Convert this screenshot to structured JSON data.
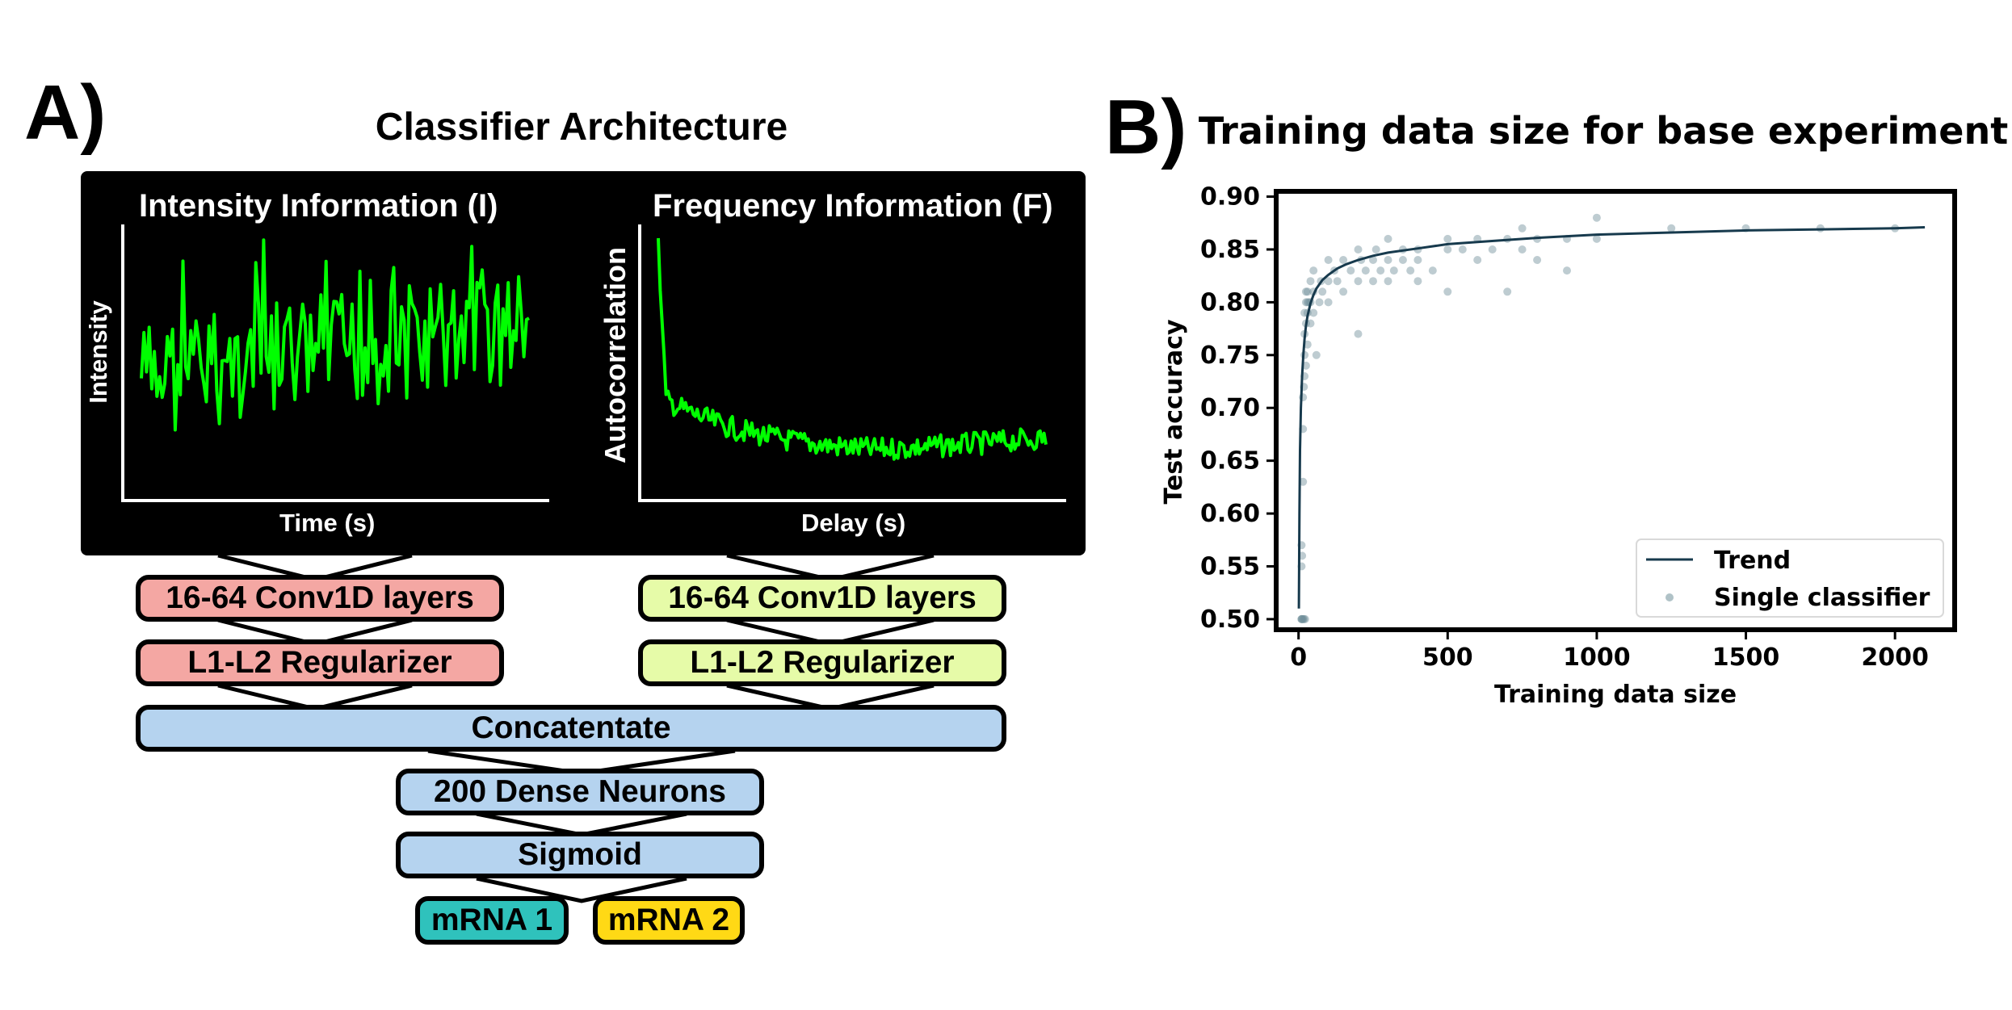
{
  "panel_a": {
    "letter": "A)",
    "title": "Classifier Architecture",
    "intensity_title": "Intensity Information (I)",
    "intensity_ylabel": "Intensity",
    "intensity_xlabel": "Time (s)",
    "frequency_title": "Frequency Information (F)",
    "frequency_ylabel": "Autocorrelation",
    "frequency_xlabel": "Delay (s)",
    "signal_color": "#00ff00",
    "left_branch": {
      "conv": "16-64 Conv1D layers",
      "reg": "L1-L2 Regularizer",
      "color": "#f4a7a3"
    },
    "right_branch": {
      "conv": "16-64 Conv1D layers",
      "reg": "L1-L2 Regularizer",
      "color": "#e6fba8"
    },
    "concat": "Concatentate",
    "dense": "200 Dense Neurons",
    "sigmoid": "Sigmoid",
    "shared_color": "#b5d3ef",
    "output1": {
      "label": "mRNA 1",
      "color": "#2fc2bc"
    },
    "output2": {
      "label": "mRNA 2",
      "color": "#ffd915"
    }
  },
  "panel_b": {
    "letter": "B)",
    "chart_data": {
      "type": "scatter",
      "title": "Training data size for base experiment",
      "xlabel": "Training data size",
      "ylabel": "Test accuracy",
      "xlim": [
        -75,
        2200
      ],
      "ylim": [
        0.49,
        0.905
      ],
      "xticks": [
        "0",
        "500",
        "1000",
        "1500",
        "2000"
      ],
      "yticks": [
        "0.50",
        "0.55",
        "0.60",
        "0.65",
        "0.70",
        "0.75",
        "0.80",
        "0.85",
        "0.90"
      ],
      "legend_position": "lower-right",
      "series": [
        {
          "name": "Trend",
          "kind": "line",
          "color": "#173a4d",
          "x": [
            1,
            3,
            5,
            8,
            12,
            16,
            20,
            25,
            30,
            40,
            50,
            60,
            80,
            100,
            130,
            160,
            200,
            250,
            300,
            400,
            500,
            600,
            800,
            1000,
            1250,
            1500,
            1750,
            2000,
            2100
          ],
          "y": [
            0.51,
            0.6,
            0.66,
            0.7,
            0.73,
            0.75,
            0.765,
            0.778,
            0.787,
            0.799,
            0.807,
            0.813,
            0.821,
            0.826,
            0.832,
            0.836,
            0.84,
            0.844,
            0.847,
            0.851,
            0.855,
            0.857,
            0.861,
            0.864,
            0.866,
            0.868,
            0.869,
            0.87,
            0.871
          ]
        },
        {
          "name": "Single classifier",
          "kind": "scatter",
          "color": "#6f8f99",
          "x": [
            10,
            10,
            10,
            12,
            15,
            15,
            15,
            18,
            20,
            20,
            20,
            20,
            25,
            25,
            25,
            25,
            30,
            30,
            30,
            30,
            35,
            40,
            40,
            40,
            50,
            50,
            50,
            60,
            70,
            75,
            80,
            100,
            100,
            100,
            120,
            130,
            150,
            150,
            175,
            200,
            200,
            200,
            210,
            225,
            250,
            250,
            260,
            275,
            300,
            300,
            300,
            320,
            350,
            350,
            375,
            400,
            400,
            400,
            450,
            500,
            500,
            500,
            550,
            600,
            600,
            650,
            700,
            700,
            750,
            750,
            800,
            800,
            900,
            900,
            1000,
            1000,
            1250,
            1500,
            1750,
            2000,
            10,
            12,
            15,
            18,
            22
          ],
          "y": [
            0.5,
            0.55,
            0.57,
            0.56,
            0.63,
            0.68,
            0.71,
            0.72,
            0.73,
            0.75,
            0.77,
            0.79,
            0.74,
            0.78,
            0.8,
            0.81,
            0.76,
            0.79,
            0.8,
            0.81,
            0.8,
            0.78,
            0.8,
            0.82,
            0.79,
            0.81,
            0.83,
            0.75,
            0.8,
            0.82,
            0.81,
            0.8,
            0.82,
            0.84,
            0.83,
            0.82,
            0.81,
            0.84,
            0.83,
            0.77,
            0.82,
            0.85,
            0.84,
            0.83,
            0.82,
            0.84,
            0.85,
            0.83,
            0.82,
            0.84,
            0.86,
            0.83,
            0.84,
            0.85,
            0.83,
            0.82,
            0.84,
            0.85,
            0.83,
            0.81,
            0.85,
            0.86,
            0.85,
            0.84,
            0.86,
            0.85,
            0.81,
            0.86,
            0.85,
            0.87,
            0.84,
            0.86,
            0.83,
            0.86,
            0.86,
            0.88,
            0.87,
            0.87,
            0.87,
            0.87,
            0.5,
            0.5,
            0.5,
            0.5,
            0.5
          ]
        }
      ]
    }
  }
}
